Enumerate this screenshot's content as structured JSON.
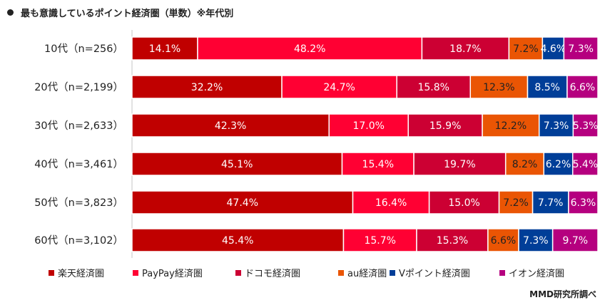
{
  "title": "最も意識しているポイント経済圏（単数）※年代別",
  "source": "MMD研究所調べ",
  "chart_data": {
    "type": "bar",
    "orientation": "horizontal",
    "stacked": "100%",
    "title": "最も意識しているポイント経済圏（単数）※年代別",
    "categories": [
      "10代（n=256）",
      "20代（n=2,199）",
      "30代（n=2,633）",
      "40代（n=3,461）",
      "50代（n=3,823）",
      "60代（n=3,102）"
    ],
    "series": [
      {
        "name": "楽天経済圏",
        "color": "#C00000",
        "label_color": "#FFFFFF",
        "values": [
          14.1,
          32.2,
          42.3,
          45.1,
          47.4,
          45.4
        ]
      },
      {
        "name": "PayPay経済圏",
        "color": "#FF0033",
        "label_color": "#FFFFFF",
        "values": [
          48.2,
          24.7,
          17.0,
          15.4,
          16.4,
          15.7
        ]
      },
      {
        "name": "ドコモ経済圏",
        "color": "#CC0033",
        "label_color": "#FFFFFF",
        "values": [
          18.7,
          15.8,
          15.9,
          19.7,
          15.0,
          15.3
        ]
      },
      {
        "name": "au経済圏",
        "color": "#EA5504",
        "label_color": "#222222",
        "values": [
          7.2,
          12.3,
          12.2,
          8.2,
          7.2,
          6.6
        ]
      },
      {
        "name": "Vポイント経済圏",
        "color": "#003E98",
        "label_color": "#FFFFFF",
        "values": [
          4.6,
          8.5,
          7.3,
          6.2,
          7.7,
          7.3
        ]
      },
      {
        "name": "イオン経済圏",
        "color": "#B5007F",
        "label_color": "#FFFFFF",
        "values": [
          7.3,
          6.6,
          5.3,
          5.4,
          6.3,
          9.7
        ]
      }
    ],
    "value_suffix": "%",
    "xlim": [
      0,
      100
    ],
    "legend_position": "bottom",
    "grid": false
  }
}
